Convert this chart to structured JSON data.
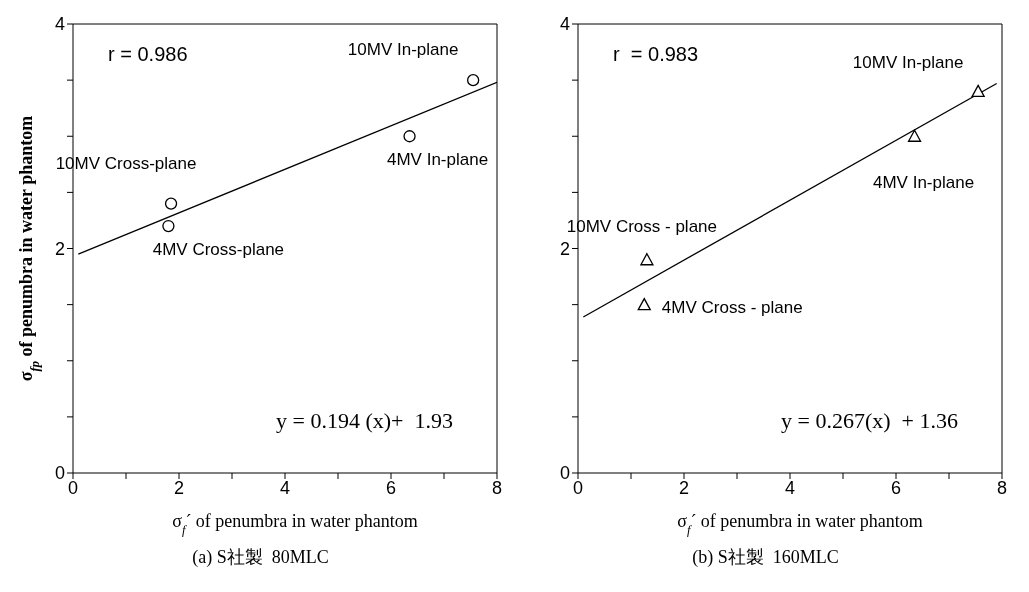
{
  "chart_data": [
    {
      "type": "scatter",
      "title": "(a) S社製  80MLC",
      "xlabel": "σ$_{f}$´ of penumbra in water phantom",
      "ylabel": "σ$_{fp}$ of penumbra in water phantom",
      "xlim": [
        0,
        8
      ],
      "xticks": [
        0,
        {
          "value": 1,
          "label": null
        },
        2,
        {
          "value": 3,
          "label": null
        },
        4,
        {
          "value": 5,
          "label": null
        },
        6,
        {
          "value": 7,
          "label": null
        },
        8
      ],
      "ylim": [
        0,
        4
      ],
      "yticks": [
        0,
        {
          "value": 0.5,
          "label": null
        },
        {
          "value": 1,
          "label": null
        },
        {
          "value": 1.5,
          "label": null
        },
        2,
        {
          "value": 2.5,
          "label": null
        },
        {
          "value": 3,
          "label": null
        },
        {
          "value": 3.5,
          "label": null
        },
        4
      ],
      "series": [
        {
          "type": "scatter",
          "color": "#000000",
          "marker": "circle",
          "x": [
            1.85,
            1.8,
            6.35,
            7.55
          ],
          "values": [
            2.4,
            2.2,
            3.0,
            3.5
          ]
        },
        {
          "type": "line",
          "color": "#000000",
          "marker": "none",
          "x": [
            0.1,
            8
          ],
          "values": [
            1.95,
            3.48
          ]
        }
      ],
      "annotations": [
        "r = 0.986",
        "y = 0.194 (x)+  1.93",
        {
          "text": "10MV In-plane",
          "x": 7.55,
          "y": 3.5
        },
        {
          "text": "4MV In-plane",
          "x": 6.35,
          "y": 3.0
        },
        {
          "text": "10MV Cross-plane",
          "x": 1.85,
          "y": 2.4
        },
        {
          "text": "4MV Cross-plane",
          "x": 1.8,
          "y": 2.2
        }
      ]
    },
    {
      "type": "scatter",
      "title": "(b) S社製  160MLC",
      "xlabel": "σ$_{f}$´ of penumbra in water phantom",
      "xlim": [
        0,
        8
      ],
      "xticks": [
        0,
        {
          "value": 1,
          "label": null
        },
        2,
        {
          "value": 3,
          "label": null
        },
        4,
        {
          "value": 5,
          "label": null
        },
        6,
        {
          "value": 7,
          "label": null
        },
        8
      ],
      "ylim": [
        0,
        4
      ],
      "yticks": [
        0,
        {
          "value": 0.5,
          "label": null
        },
        {
          "value": 1,
          "label": null
        },
        {
          "value": 1.5,
          "label": null
        },
        2,
        {
          "value": 2.5,
          "label": null
        },
        {
          "value": 3,
          "label": null
        },
        {
          "value": 3.5,
          "label": null
        },
        4
      ],
      "series": [
        {
          "type": "scatter",
          "color": "#000000",
          "marker": "triangle",
          "x": [
            1.3,
            1.25,
            6.35,
            7.55
          ],
          "values": [
            1.9,
            1.5,
            3.0,
            3.4
          ]
        },
        {
          "type": "line",
          "color": "#000000",
          "marker": "none",
          "x": [
            0.1,
            7.9
          ],
          "values": [
            1.39,
            3.47
          ]
        }
      ],
      "annotations": [
        "r  = 0.983",
        "y = 0.267(x)  + 1.36",
        {
          "text": "10MV In-plane",
          "x": 7.55,
          "y": 3.4
        },
        {
          "text": "4MV In-plane",
          "x": 6.35,
          "y": 3.0
        },
        {
          "text": "10MV Cross - plane",
          "x": 1.3,
          "y": 1.9
        },
        {
          "text": "4MV Cross - plane",
          "x": 1.25,
          "y": 1.5
        }
      ]
    }
  ]
}
